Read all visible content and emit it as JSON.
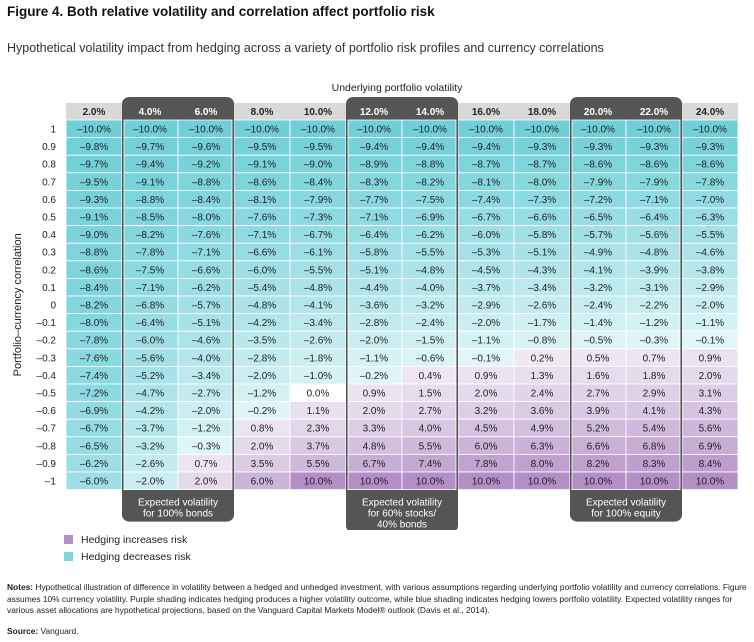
{
  "figure": {
    "title": "Figure 4. Both relative volatility and correlation affect portfolio risk",
    "subtitle": "Hypothetical volatility impact from hedging across a variety of portfolio risk profiles and currency correlations"
  },
  "chart_data": {
    "type": "heatmap",
    "title": "Figure 4. Both relative volatility and correlation affect portfolio risk",
    "subtitle": "Hypothetical volatility impact from hedging across a variety of portfolio risk profiles and currency correlations",
    "xlabel": "Underlying portfolio volatility",
    "ylabel": "Portfolio–currency correlation",
    "columns": [
      "2.0%",
      "4.0%",
      "6.0%",
      "8.0%",
      "10.0%",
      "12.0%",
      "14.0%",
      "16.0%",
      "18.0%",
      "20.0%",
      "22.0%",
      "24.0%"
    ],
    "rows": [
      "1",
      "0.9",
      "0.8",
      "0.7",
      "0.6",
      "0.5",
      "0.4",
      "0.3",
      "0.2",
      "0.1",
      "0",
      "–0.1",
      "–0.2",
      "–0.3",
      "–0.4",
      "–0.5",
      "–0.6",
      "–0.7",
      "–0.8",
      "–0.9",
      "–1"
    ],
    "cells": [
      [
        "–10.0%",
        "–10.0%",
        "–10.0%",
        "–10.0%",
        "–10.0%",
        "–10.0%",
        "–10.0%",
        "–10.0%",
        "–10.0%",
        "–10.0%",
        "–10.0%",
        "–10.0%"
      ],
      [
        "–9.8%",
        "–9.7%",
        "–9.6%",
        "–9.5%",
        "–9.5%",
        "–9.4%",
        "–9.4%",
        "–9.4%",
        "–9.3%",
        "–9.3%",
        "–9.3%",
        "–9.3%"
      ],
      [
        "–9.7%",
        "–9.4%",
        "–9.2%",
        "–9.1%",
        "–9.0%",
        "–8.9%",
        "–8.8%",
        "–8.7%",
        "–8.7%",
        "–8.6%",
        "–8.6%",
        "–8.6%"
      ],
      [
        "–9.5%",
        "–9.1%",
        "–8.8%",
        "–8.6%",
        "–8.4%",
        "–8.3%",
        "–8.2%",
        "–8.1%",
        "–8.0%",
        "–7.9%",
        "–7.9%",
        "–7.8%"
      ],
      [
        "–9.3%",
        "–8.8%",
        "–8.4%",
        "–8.1%",
        "–7.9%",
        "–7.7%",
        "–7.5%",
        "–7.4%",
        "–7.3%",
        "–7.2%",
        "–7.1%",
        "–7.0%"
      ],
      [
        "–9.1%",
        "–8.5%",
        "–8.0%",
        "–7.6%",
        "–7.3%",
        "–7.1%",
        "–6.9%",
        "–6.7%",
        "–6.6%",
        "–6.5%",
        "–6.4%",
        "–6.3%"
      ],
      [
        "–9.0%",
        "–8.2%",
        "–7.6%",
        "–7.1%",
        "–6.7%",
        "–6.4%",
        "–6.2%",
        "–6.0%",
        "–5.8%",
        "–5.7%",
        "–5.6%",
        "–5.5%"
      ],
      [
        "–8.8%",
        "–7.8%",
        "–7.1%",
        "–6.6%",
        "–6.1%",
        "–5.8%",
        "–5.5%",
        "–5.3%",
        "–5.1%",
        "–4.9%",
        "–4.8%",
        "–4.6%"
      ],
      [
        "–8.6%",
        "–7.5%",
        "–6.6%",
        "–6.0%",
        "–5.5%",
        "–5.1%",
        "–4.8%",
        "–4.5%",
        "–4.3%",
        "–4.1%",
        "–3.9%",
        "–3.8%"
      ],
      [
        "–8.4%",
        "–7.1%",
        "–6.2%",
        "–5.4%",
        "–4.8%",
        "–4.4%",
        "–4.0%",
        "–3.7%",
        "–3.4%",
        "–3.2%",
        "–3.1%",
        "–2.9%"
      ],
      [
        "–8.2%",
        "–6.8%",
        "–5.7%",
        "–4.8%",
        "–4.1%",
        "–3.6%",
        "–3.2%",
        "–2.9%",
        "–2.6%",
        "–2.4%",
        "–2.2%",
        "–2.0%"
      ],
      [
        "–8.0%",
        "–6.4%",
        "–5.1%",
        "–4.2%",
        "–3.4%",
        "–2.8%",
        "–2.4%",
        "–2.0%",
        "–1.7%",
        "–1.4%",
        "–1.2%",
        "–1.1%"
      ],
      [
        "–7.8%",
        "–6.0%",
        "–4.6%",
        "–3.5%",
        "–2.6%",
        "–2.0%",
        "–1.5%",
        "–1.1%",
        "–0.8%",
        "–0.5%",
        "–0.3%",
        "–0.1%"
      ],
      [
        "–7.6%",
        "–5.6%",
        "–4.0%",
        "–2.8%",
        "–1.8%",
        "–1.1%",
        "–0.6%",
        "–0.1%",
        "0.2%",
        "0.5%",
        "0.7%",
        "0.9%"
      ],
      [
        "–7.4%",
        "–5.2%",
        "–3.4%",
        "–2.0%",
        "–1.0%",
        "–0.2%",
        "0.4%",
        "0.9%",
        "1.3%",
        "1.6%",
        "1.8%",
        "2.0%"
      ],
      [
        "–7.2%",
        "–4.7%",
        "–2.7%",
        "–1.2%",
        "0.0%",
        "0.9%",
        "1.5%",
        "2.0%",
        "2.4%",
        "2.7%",
        "2.9%",
        "3.1%"
      ],
      [
        "–6.9%",
        "–4.2%",
        "–2.0%",
        "–0.2%",
        "1.1%",
        "2.0%",
        "2.7%",
        "3.2%",
        "3.6%",
        "3.9%",
        "4.1%",
        "4.3%"
      ],
      [
        "–6.7%",
        "–3.7%",
        "–1.2%",
        "0.8%",
        "2.3%",
        "3.3%",
        "4.0%",
        "4.5%",
        "4.9%",
        "5.2%",
        "5.4%",
        "5.6%"
      ],
      [
        "–6.5%",
        "–3.2%",
        "–0.3%",
        "2.0%",
        "3.7%",
        "4.8%",
        "5.5%",
        "6.0%",
        "6.3%",
        "6.6%",
        "6.8%",
        "6.9%"
      ],
      [
        "–6.2%",
        "–2.6%",
        "0.7%",
        "3.5%",
        "5.5%",
        "6.7%",
        "7.4%",
        "7.8%",
        "8.0%",
        "8.2%",
        "8.3%",
        "8.4%"
      ],
      [
        "–6.0%",
        "–2.0%",
        "2.0%",
        "6.0%",
        "10.0%",
        "10.0%",
        "10.0%",
        "10.0%",
        "10.0%",
        "10.0%",
        "10.0%",
        "10.0%"
      ]
    ],
    "highlight_groups": [
      {
        "columns": [
          "4.0%",
          "6.0%"
        ],
        "label": [
          "Expected volatility",
          "for 100% bonds"
        ]
      },
      {
        "columns": [
          "12.0%",
          "14.0%"
        ],
        "label": [
          "Expected volatility",
          "for 60% stocks/",
          "40% bonds"
        ]
      },
      {
        "columns": [
          "20.0%",
          "22.0%"
        ],
        "label": [
          "Expected volatility",
          "for 100% equity"
        ]
      }
    ],
    "legend": [
      {
        "label": "Hedging increases risk",
        "color": "#b48fc7"
      },
      {
        "label": "Hedging decreases risk",
        "color": "#7dd4dc"
      }
    ],
    "colors": {
      "decrease_strong": "#6fcfd8",
      "decrease_weak": "#e2f6f8",
      "increase_weak": "#f1ebf5",
      "increase_strong": "#b48fc7",
      "header": "#d9d9d9",
      "group_frame": "#555555"
    }
  },
  "notes": {
    "label": "Notes:",
    "text": " Hypothetical illustration of difference in volatility between a hedged and unhedged investment, with various assumptions regarding underlying portfolio volatility and currency correlations. Figure assumes 10% currency volatility. Purple shading indicates hedging produces a higher volatility outcome, while blue shading indicates hedging lowers portfolio volatility. Expected volatility ranges for various asset allocations are hypothetical projections, based on the Vanguard Capital Markets Model® outlook (Davis et al., 2014)."
  },
  "source": {
    "label": "Source:",
    "text": " Vanguard."
  }
}
